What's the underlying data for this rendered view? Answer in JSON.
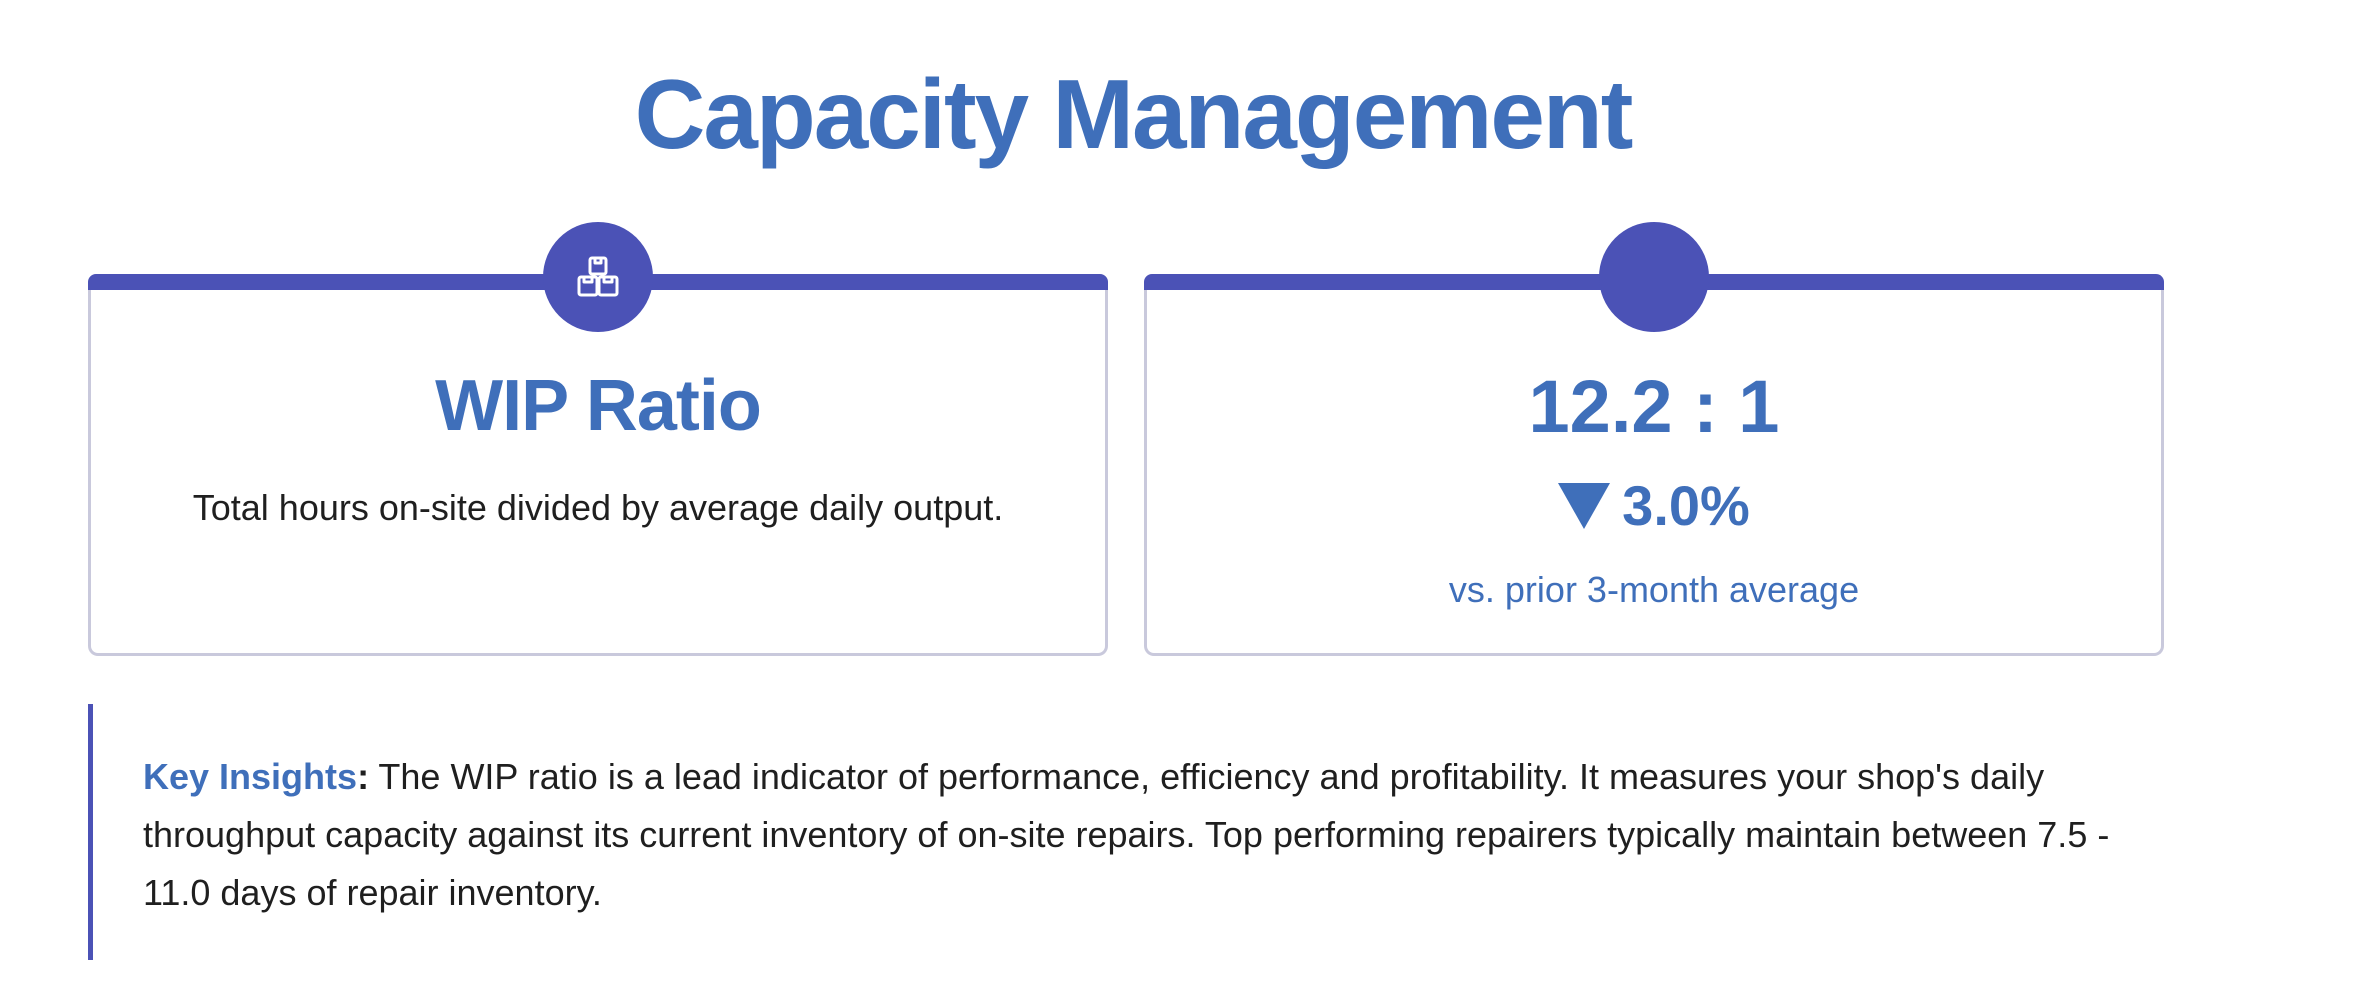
{
  "page": {
    "title": "Capacity Management"
  },
  "wip_card": {
    "title": "WIP Ratio",
    "description": "Total hours on-site divided by average daily output.",
    "icon": "boxes-icon"
  },
  "metric_card": {
    "value": "12.2 : 1",
    "change_direction": "down",
    "change": "3.0%",
    "note": "vs. prior 3-month average"
  },
  "insights": {
    "label": "Key Insights",
    "colon": ":",
    "text": " The WIP ratio is a lead indicator of performance, efficiency and profitability. It measures your shop's daily throughput capacity against its current inventory of on-site repairs. Top performing repairers typically maintain between 7.5 - 11.0 days of repair inventory."
  },
  "colors": {
    "accent": "#4b52b6",
    "title": "#3f6fba",
    "card_border": "#c9c9dc",
    "text": "#1f1f1f"
  }
}
